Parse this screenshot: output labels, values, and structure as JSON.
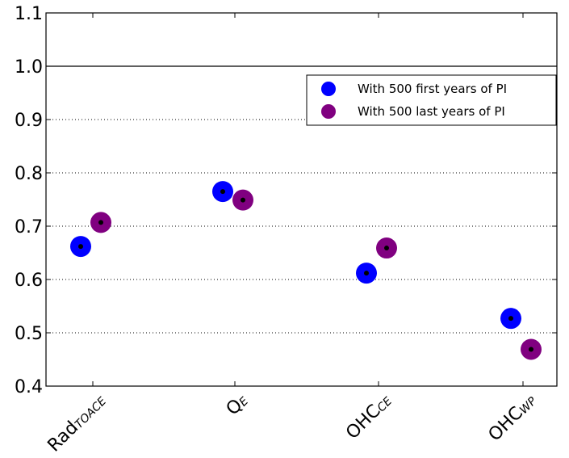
{
  "chart_data": {
    "type": "scatter",
    "title": "",
    "xlabel": "",
    "ylabel": "",
    "ylim": [
      0.4,
      1.1
    ],
    "yticks": [
      "0.4",
      "0.5",
      "0.6",
      "0.7",
      "0.8",
      "0.9",
      "1.0",
      "1.1"
    ],
    "categories": [
      {
        "main": "Rad",
        "sub": "TOACE"
      },
      {
        "main": "Q",
        "sub": "E"
      },
      {
        "main": "OHC",
        "sub": "CE"
      },
      {
        "main": "OHC",
        "sub": "WP"
      }
    ],
    "grid": "horizontal dotted",
    "reference_line": 1.0,
    "legend_placement": "upper-right",
    "series": [
      {
        "name": "With 500 first years of PI",
        "color": "#0000ff",
        "values": [
          0.662,
          0.765,
          0.612,
          0.527
        ]
      },
      {
        "name": "With 500 last years of PI",
        "color": "#800080",
        "values": [
          0.707,
          0.749,
          0.659,
          0.469
        ]
      }
    ],
    "center_dot_color": "#000000"
  }
}
